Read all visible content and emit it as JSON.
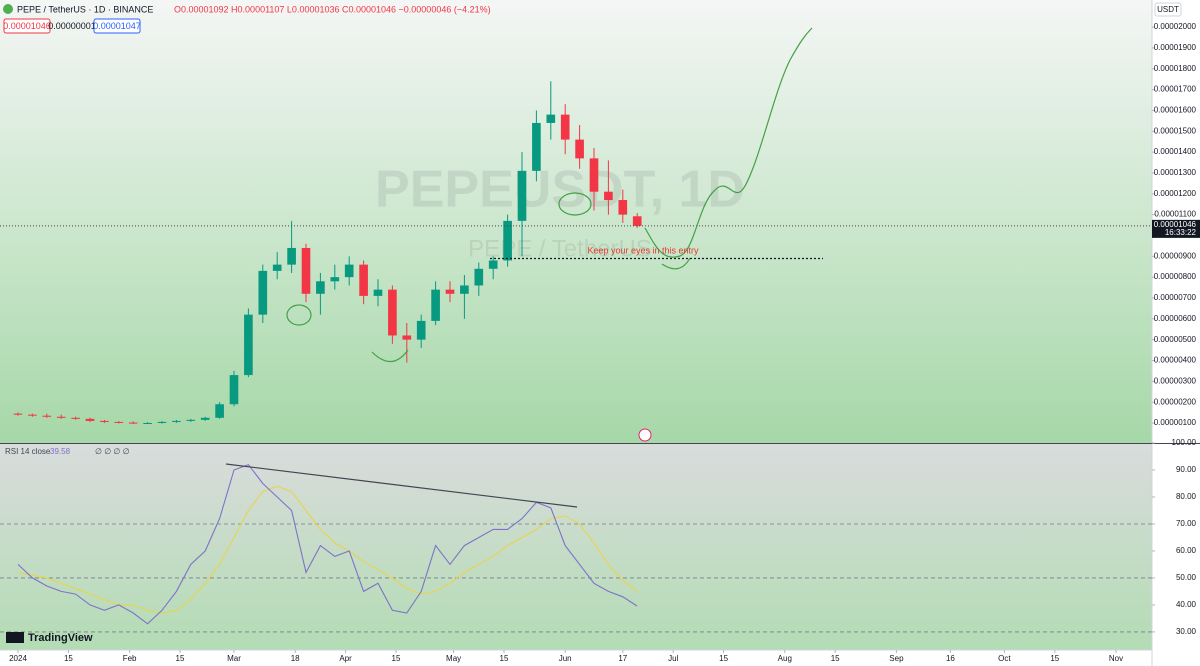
{
  "header": {
    "symbol": "PEPE / TetherUS · 1D · BINANCE",
    "ohlc": "O0.00001092 H0.00001107 L0.00001036 C0.00001046 −0.00000046 (−4.21%)",
    "sell": "0.00001046",
    "spread": "0.00000001",
    "buy": "0.00001047"
  },
  "watermark": {
    "title": "PEPEUSDT, 1D",
    "subtitle": "PEPE / TetherUS"
  },
  "currency": "USDT",
  "price_tag": {
    "price": "0.00001046",
    "countdown": "16:33:22"
  },
  "annotation": "Keep your eyes in this entry",
  "branding": "TradingView",
  "chart_data": [
    {
      "type": "candlestick",
      "x": [
        "2024-01-01",
        "2024-01-05",
        "2024-01-09",
        "2024-01-13",
        "2024-01-17",
        "2024-01-21",
        "2024-01-25",
        "2024-01-29",
        "2024-02-02",
        "2024-02-06",
        "2024-02-10",
        "2024-02-14",
        "2024-02-18",
        "2024-02-22",
        "2024-02-26",
        "2024-03-01",
        "2024-03-05",
        "2024-03-09",
        "2024-03-13",
        "2024-03-17",
        "2024-03-21",
        "2024-03-25",
        "2024-03-29",
        "2024-04-02",
        "2024-04-06",
        "2024-04-10",
        "2024-04-14",
        "2024-04-18",
        "2024-04-22",
        "2024-04-26",
        "2024-04-30",
        "2024-05-04",
        "2024-05-08",
        "2024-05-12",
        "2024-05-16",
        "2024-05-20",
        "2024-05-24",
        "2024-05-28",
        "2024-06-01",
        "2024-06-05",
        "2024-06-09",
        "2024-06-13",
        "2024-06-17",
        "2024-06-21"
      ],
      "open": [
        1.45e-06,
        1.4e-06,
        1.35e-06,
        1.3e-06,
        1.25e-06,
        1.2e-06,
        1.1e-06,
        1.05e-06,
        1.02e-06,
        1e-06,
        1e-06,
        1.05e-06,
        1.1e-06,
        1.15e-06,
        1.25e-06,
        1.9e-06,
        3.3e-06,
        6.2e-06,
        8.3e-06,
        8.6e-06,
        9.4e-06,
        7.2e-06,
        7.8e-06,
        8e-06,
        8.6e-06,
        7.1e-06,
        7.4e-06,
        5.2e-06,
        5e-06,
        5.9e-06,
        7.4e-06,
        7.2e-06,
        7.6e-06,
        8.4e-06,
        8.8e-06,
        1.07e-05,
        1.31e-05,
        1.54e-05,
        1.58e-05,
        1.46e-05,
        1.37e-05,
        1.21e-05,
        1.17e-05,
        1.092e-05
      ],
      "high": [
        1.5e-06,
        1.45e-06,
        1.45e-06,
        1.4e-06,
        1.3e-06,
        1.25e-06,
        1.15e-06,
        1.1e-06,
        1.08e-06,
        1.05e-06,
        1.1e-06,
        1.15e-06,
        1.2e-06,
        1.3e-06,
        2e-06,
        3.5e-06,
        6.5e-06,
        8.6e-06,
        9.2e-06,
        1.07e-05,
        9.6e-06,
        8.2e-06,
        8.6e-06,
        9e-06,
        8.8e-06,
        7.9e-06,
        7.6e-06,
        5.8e-06,
        6.2e-06,
        7.8e-06,
        7.8e-06,
        8.1e-06,
        8.7e-06,
        9e-06,
        1.1e-05,
        1.4e-05,
        1.6e-05,
        1.74e-05,
        1.63e-05,
        1.53e-05,
        1.42e-05,
        1.36e-05,
        1.22e-05,
        1.107e-05
      ],
      "low": [
        1.35e-06,
        1.3e-06,
        1.25e-06,
        1.2e-06,
        1.15e-06,
        1.05e-06,
        1e-06,
        9.8e-07,
        9.5e-07,
        9.5e-07,
        9.7e-07,
        1e-06,
        1.05e-06,
        1.1e-06,
        1.2e-06,
        1.8e-06,
        3.2e-06,
        5.8e-06,
        7.9e-06,
        8.2e-06,
        6.8e-06,
        6.2e-06,
        7.4e-06,
        7.6e-06,
        6.7e-06,
        6.6e-06,
        4.8e-06,
        3.9e-06,
        4.6e-06,
        5.7e-06,
        6.8e-06,
        6e-06,
        7.1e-06,
        7.9e-06,
        8.5e-06,
        9e-06,
        1.26e-05,
        1.46e-05,
        1.39e-05,
        1.32e-05,
        1.12e-05,
        1.1e-05,
        1.06e-05,
        1.036e-05
      ],
      "close": [
        1.4e-06,
        1.35e-06,
        1.3e-06,
        1.25e-06,
        1.2e-06,
        1.1e-06,
        1.05e-06,
        1.02e-06,
        1e-06,
        1e-06,
        1.05e-06,
        1.1e-06,
        1.15e-06,
        1.25e-06,
        1.9e-06,
        3.3e-06,
        6.2e-06,
        8.3e-06,
        8.6e-06,
        9.4e-06,
        7.2e-06,
        7.8e-06,
        8e-06,
        8.6e-06,
        7.1e-06,
        7.4e-06,
        5.2e-06,
        5e-06,
        5.9e-06,
        7.4e-06,
        7.2e-06,
        7.6e-06,
        8.4e-06,
        8.8e-06,
        1.07e-05,
        1.31e-05,
        1.54e-05,
        1.58e-05,
        1.46e-05,
        1.37e-05,
        1.21e-05,
        1.17e-05,
        1.1e-05,
        1.046e-05
      ],
      "up_color": "#089981",
      "down_color": "#f23645",
      "xlim": [
        "2023-12-27",
        "2024-11-11"
      ],
      "ylim": [
        4e-08,
        2.13e-05
      ],
      "yticks": [
        {
          "value": 1e-06,
          "label": "0.00000100"
        },
        {
          "value": 2e-06,
          "label": "0.00000200"
        },
        {
          "value": 3e-06,
          "label": "0.00000300"
        },
        {
          "value": 4e-06,
          "label": "0.00000400"
        },
        {
          "value": 5e-06,
          "label": "0.00000500"
        },
        {
          "value": 6e-06,
          "label": "0.00000600"
        },
        {
          "value": 7e-06,
          "label": "0.00000700"
        },
        {
          "value": 8e-06,
          "label": "0.00000800"
        },
        {
          "value": 9e-06,
          "label": "0.00000900"
        },
        {
          "value": 1.1e-05,
          "label": "0.00001100"
        },
        {
          "value": 1.2e-05,
          "label": "0.00001200"
        },
        {
          "value": 1.3e-05,
          "label": "0.00001300"
        },
        {
          "value": 1.4e-05,
          "label": "0.00001400"
        },
        {
          "value": 1.5e-05,
          "label": "0.00001500"
        },
        {
          "value": 1.6e-05,
          "label": "0.00001600"
        },
        {
          "value": 1.7e-05,
          "label": "0.00001700"
        },
        {
          "value": 1.8e-05,
          "label": "0.00001800"
        },
        {
          "value": 1.9e-05,
          "label": "0.00001900"
        },
        {
          "value": 2e-05,
          "label": "0.00002000"
        }
      ],
      "xticks": [
        {
          "value": "2024-01-01",
          "label": "2024"
        },
        {
          "value": "2024-01-15",
          "label": "15"
        },
        {
          "value": "2024-02-01",
          "label": "Feb"
        },
        {
          "value": "2024-02-15",
          "label": "15"
        },
        {
          "value": "2024-03-01",
          "label": "Mar"
        },
        {
          "value": "2024-03-18",
          "label": "18"
        },
        {
          "value": "2024-04-01",
          "label": "Apr"
        },
        {
          "value": "2024-04-15",
          "label": "15"
        },
        {
          "value": "2024-05-01",
          "label": "May"
        },
        {
          "value": "2024-05-15",
          "label": "15"
        },
        {
          "value": "2024-06-01",
          "label": "Jun"
        },
        {
          "value": "2024-06-17",
          "label": "17"
        },
        {
          "value": "2024-07-01",
          "label": "Jul"
        },
        {
          "value": "2024-07-15",
          "label": "15"
        },
        {
          "value": "2024-08-01",
          "label": "Aug"
        },
        {
          "value": "2024-08-15",
          "label": "15"
        },
        {
          "value": "2024-09-01",
          "label": "Sep"
        },
        {
          "value": "2024-09-16",
          "label": "16"
        },
        {
          "value": "2024-10-01",
          "label": "Oct"
        },
        {
          "value": "2024-10-15",
          "label": "15"
        },
        {
          "value": "2024-11-01",
          "label": "Nov"
        }
      ]
    },
    {
      "type": "line",
      "title": "RSI 14 close",
      "extras": "∅ ∅ ∅ ∅",
      "series": [
        {
          "name": "RSI 14 close",
          "color": "#7e72c8",
          "values": [
            55,
            50,
            47,
            45,
            44,
            40,
            38,
            40,
            37,
            33,
            38,
            45,
            55,
            60,
            72,
            90,
            92,
            85,
            80,
            75,
            52,
            62,
            58,
            60,
            45,
            48,
            38,
            37,
            45,
            62,
            55,
            62,
            65,
            68,
            68,
            72,
            78,
            76,
            62,
            55,
            48,
            45,
            43,
            39.58
          ]
        },
        {
          "color": "#e8d44d",
          "values": [
            52,
            51,
            50,
            48,
            46,
            44,
            42,
            40,
            40,
            38,
            37,
            38,
            42,
            48,
            55,
            65,
            75,
            82,
            84,
            82,
            75,
            68,
            63,
            60,
            56,
            53,
            50,
            46,
            44,
            45,
            48,
            52,
            55,
            58,
            62,
            65,
            68,
            72,
            73,
            70,
            63,
            55,
            49,
            45
          ]
        }
      ],
      "ylim": [
        23.3,
        100
      ],
      "yticks": [
        {
          "value": 30,
          "label": "30.00"
        },
        {
          "value": 40,
          "label": "40.00"
        },
        {
          "value": 50,
          "label": "50.00"
        },
        {
          "value": 60,
          "label": "60.00"
        },
        {
          "value": 70,
          "label": "70.00"
        },
        {
          "value": 80,
          "label": "80.00"
        },
        {
          "value": 90,
          "label": "90.00"
        },
        {
          "value": 100,
          "label": "100.00"
        }
      ],
      "bands": [
        70,
        50,
        30
      ]
    }
  ]
}
